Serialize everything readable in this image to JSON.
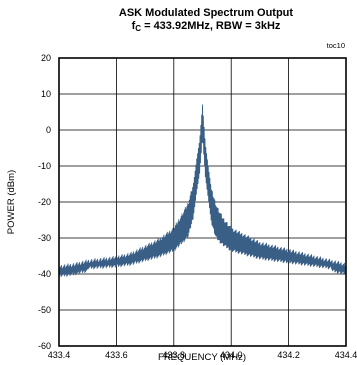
{
  "chart_data": {
    "type": "line",
    "title": "ASK Modulated Spectrum Output",
    "subtitle": "f",
    "subtitle_sub": "C",
    "subtitle_rest": " = 433.92MHz, RBW = 3kHz",
    "figure_code": "toc10",
    "xlabel": "FREQUENCY (MHz)",
    "ylabel": "POWER (dBm)",
    "xlim": [
      433.4,
      434.4
    ],
    "ylim": [
      -60,
      20
    ],
    "x_ticks": [
      "433.4",
      "433.6",
      "433.8",
      "434.0",
      "434.2",
      "434.4"
    ],
    "y_ticks": [
      "20",
      "10",
      "0",
      "-10",
      "-20",
      "-30",
      "-40",
      "-50",
      "-60"
    ],
    "grid": true,
    "line_color": "#3a5f86",
    "series": [
      {
        "x": [
          433.4,
          433.45,
          433.5,
          433.55,
          433.6,
          433.65,
          433.7,
          433.75,
          433.8,
          433.83,
          433.85,
          433.87,
          433.88,
          433.89,
          433.9,
          433.91,
          433.92,
          433.93,
          433.95,
          433.97,
          434.0,
          434.05,
          434.1,
          434.15,
          434.2,
          434.25,
          434.3,
          434.35,
          434.4
        ],
        "values": [
          -37.5,
          -37,
          -36,
          -35.5,
          -35,
          -34,
          -32,
          -30,
          -27,
          -23,
          -20,
          -14,
          -8,
          -3,
          7,
          -4,
          -10,
          -16,
          -21,
          -24,
          -27,
          -29,
          -31,
          -32,
          -33,
          -34,
          -35,
          -36,
          -37
        ]
      }
    ]
  }
}
